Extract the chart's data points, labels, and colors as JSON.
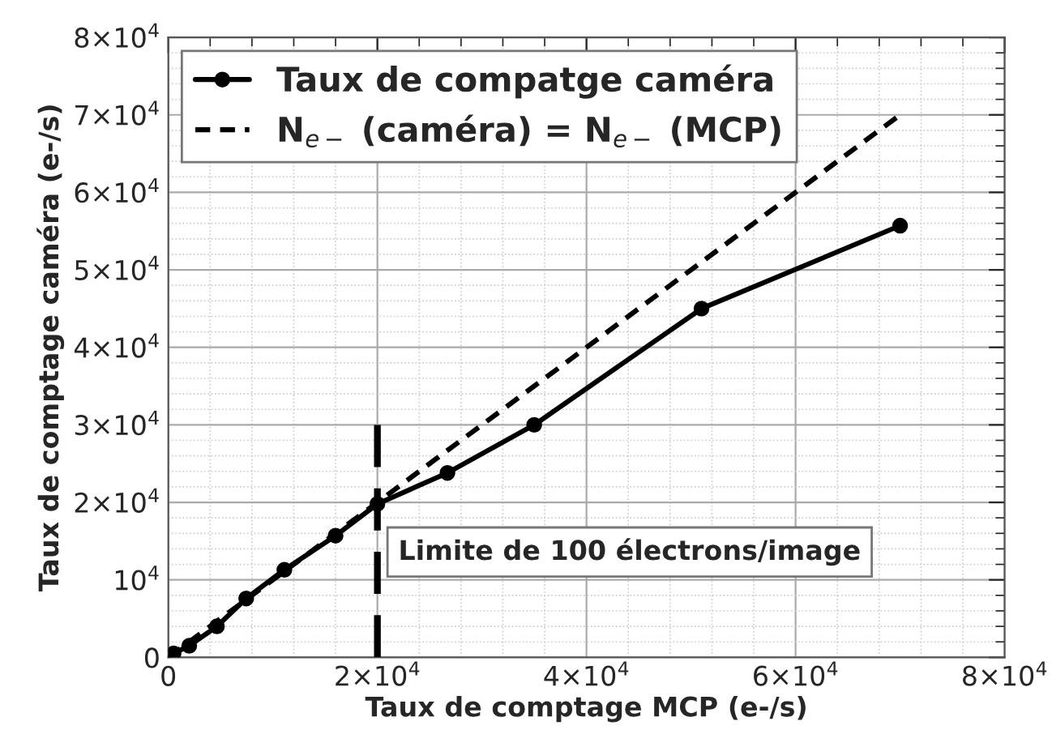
{
  "chart_data": {
    "type": "line",
    "xlabel": "Taux de comptage MCP (e-/s)",
    "ylabel": "Taux de comptage caméra (e-/s)",
    "series": [
      {
        "name": "Taux de compatge caméra",
        "color": "#000000",
        "marker": "circle",
        "line_style": "solid",
        "x": [
          500,
          2000,
          4650,
          7450,
          11100,
          16000,
          20000,
          26700,
          35000,
          51000,
          70000
        ],
        "values": [
          500,
          1500,
          4000,
          7600,
          11300,
          15700,
          19800,
          23800,
          30000,
          45000,
          55700
        ]
      },
      {
        "name": "N$_{e−}$ (caméra) = N$_{e−}$ (MCP)",
        "color": "#000000",
        "marker": "none",
        "line_style": "dotted",
        "x": [
          0,
          70000
        ],
        "values": [
          0,
          70000
        ]
      },
      {
        "color": "#000000",
        "marker": "none",
        "line_style": "dashed",
        "x": [
          20000,
          20000
        ],
        "values": [
          0,
          30000
        ]
      }
    ],
    "annotations": [
      "Limite de 100 électrons/image"
    ],
    "xlim": [
      0,
      80000
    ],
    "ylim": [
      0,
      80000
    ],
    "xticks": [
      0,
      {
        "value": 20000,
        "label": "2×10$^{4}$"
      },
      {
        "value": 40000,
        "label": "4×10$^{4}$"
      },
      {
        "value": 60000,
        "label": "6×10$^{4}$"
      },
      {
        "value": 80000,
        "label": "8×10$^{4}$"
      }
    ],
    "yticks": [
      0,
      {
        "value": 10000,
        "label": "10$^{4}$"
      },
      {
        "value": 20000,
        "label": "2×10$^{4}$"
      },
      {
        "value": 30000,
        "label": "3×10$^{4}$"
      },
      {
        "value": 40000,
        "label": "4×10$^{4}$"
      },
      {
        "value": 50000,
        "label": "5×10$^{4}$"
      },
      {
        "value": 60000,
        "label": "6×10$^{4}$"
      },
      {
        "value": 70000,
        "label": "7×10$^{4}$"
      },
      {
        "value": 80000,
        "label": "8×10$^{4}$"
      }
    ],
    "grid": true,
    "legend": "top left"
  }
}
